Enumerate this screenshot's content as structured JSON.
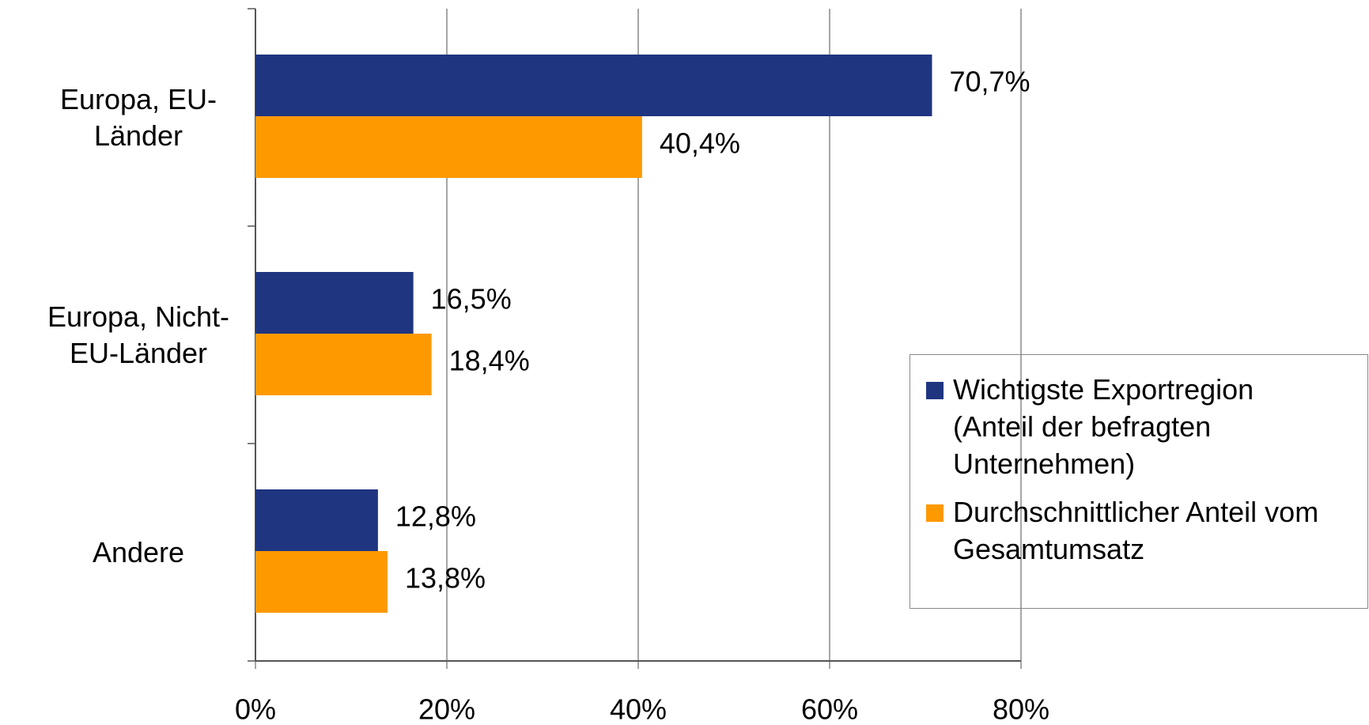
{
  "chart_data": {
    "type": "bar",
    "orientation": "horizontal",
    "categories": [
      "Europa, EU-Länder",
      "Europa, Nicht-EU-Länder",
      "Andere"
    ],
    "series": [
      {
        "name": "Wichtigste Exportregion (Anteil der befragten Unternehmen)",
        "color": "#1f3580",
        "values": [
          70.7,
          16.5,
          12.8
        ],
        "value_labels": [
          "70,7%",
          "16,5%",
          "12,8%"
        ]
      },
      {
        "name": "Durchschnittlicher Anteil vom Gesamtumsatz",
        "color": "#ff9900",
        "values": [
          40.4,
          18.4,
          13.8
        ],
        "value_labels": [
          "40,4%",
          "18,4%",
          "13,8%"
        ]
      }
    ],
    "xlim": [
      0,
      80
    ],
    "xticks": [
      {
        "value": 0,
        "label": "0%"
      },
      {
        "value": 20,
        "label": "20%"
      },
      {
        "value": 40,
        "label": "40%"
      },
      {
        "value": 60,
        "label": "60%"
      },
      {
        "value": 80,
        "label": "80%"
      }
    ],
    "grid": true,
    "legend": "right"
  }
}
